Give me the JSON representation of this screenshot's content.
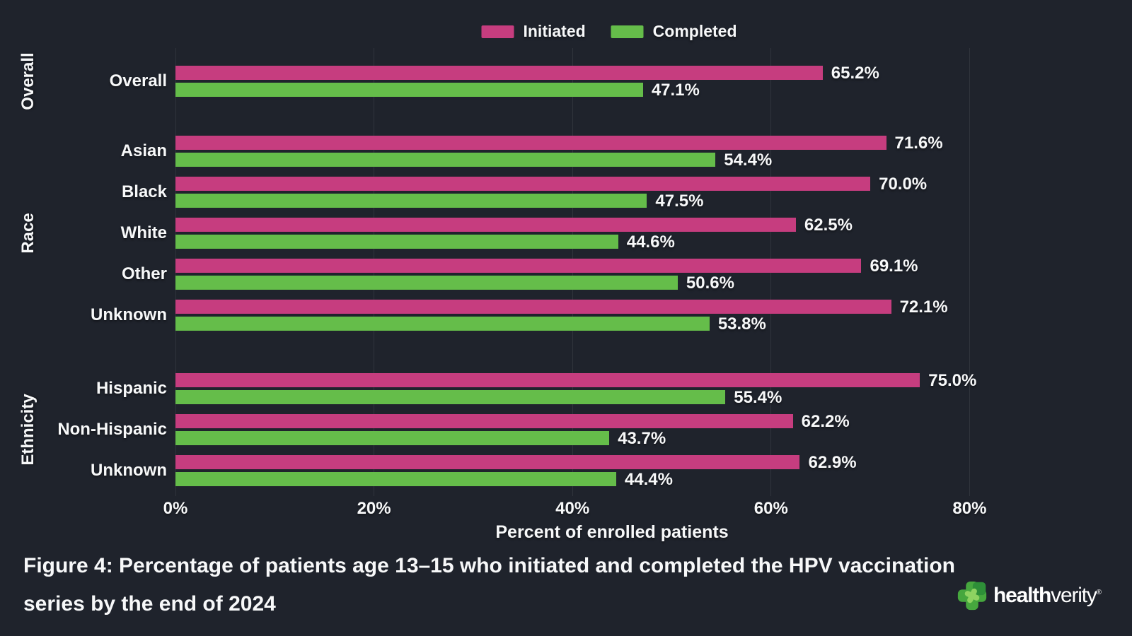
{
  "background_color": "#1f232c",
  "legend": {
    "items": [
      {
        "label": "Initiated",
        "color": "#c63d7f"
      },
      {
        "label": "Completed",
        "color": "#65bd4a"
      }
    ]
  },
  "chart_data": {
    "type": "bar",
    "orientation": "horizontal",
    "title": "",
    "xlabel": "Percent of enrolled patients",
    "ylabel": "",
    "xlim": [
      0,
      95
    ],
    "grid": "vertical-on",
    "legend_position": "top-center",
    "value_label_format": "{v}%",
    "value_decimals": 1,
    "series": [
      {
        "name": "Initiated",
        "color": "#c63d7f"
      },
      {
        "name": "Completed",
        "color": "#65bd4a"
      }
    ],
    "x_ticks": [
      {
        "label": "0%",
        "value": 0
      },
      {
        "label": "20%",
        "value": 20
      },
      {
        "label": "40%",
        "value": 40
      },
      {
        "label": "60%",
        "value": 60
      },
      {
        "label": "80%",
        "value": 80
      }
    ],
    "groups": [
      {
        "label": "Overall",
        "rows": [
          {
            "label": "Overall",
            "values": [
              65.2,
              47.1
            ]
          }
        ]
      },
      {
        "label": "Race",
        "rows": [
          {
            "label": "Asian",
            "values": [
              71.6,
              54.4
            ]
          },
          {
            "label": "Black",
            "values": [
              70.0,
              47.5
            ]
          },
          {
            "label": "White",
            "values": [
              62.5,
              44.6
            ]
          },
          {
            "label": "Other",
            "values": [
              69.1,
              50.6
            ]
          },
          {
            "label": "Unknown",
            "values": [
              72.1,
              53.8
            ]
          }
        ]
      },
      {
        "label": "Ethnicity",
        "rows": [
          {
            "label": "Hispanic",
            "values": [
              75.0,
              55.4
            ]
          },
          {
            "label": "Non-Hispanic",
            "values": [
              62.2,
              43.7
            ]
          },
          {
            "label": "Unknown",
            "values": [
              62.9,
              44.4
            ]
          }
        ]
      }
    ]
  },
  "caption": {
    "line1": "Figure 4: Percentage of patients age 13–15 who initiated and completed the HPV vaccination",
    "line2": "series by the end of 2024"
  },
  "logo": {
    "brand_bold": "health",
    "brand_regular": "verity",
    "registered_mark": "®"
  }
}
